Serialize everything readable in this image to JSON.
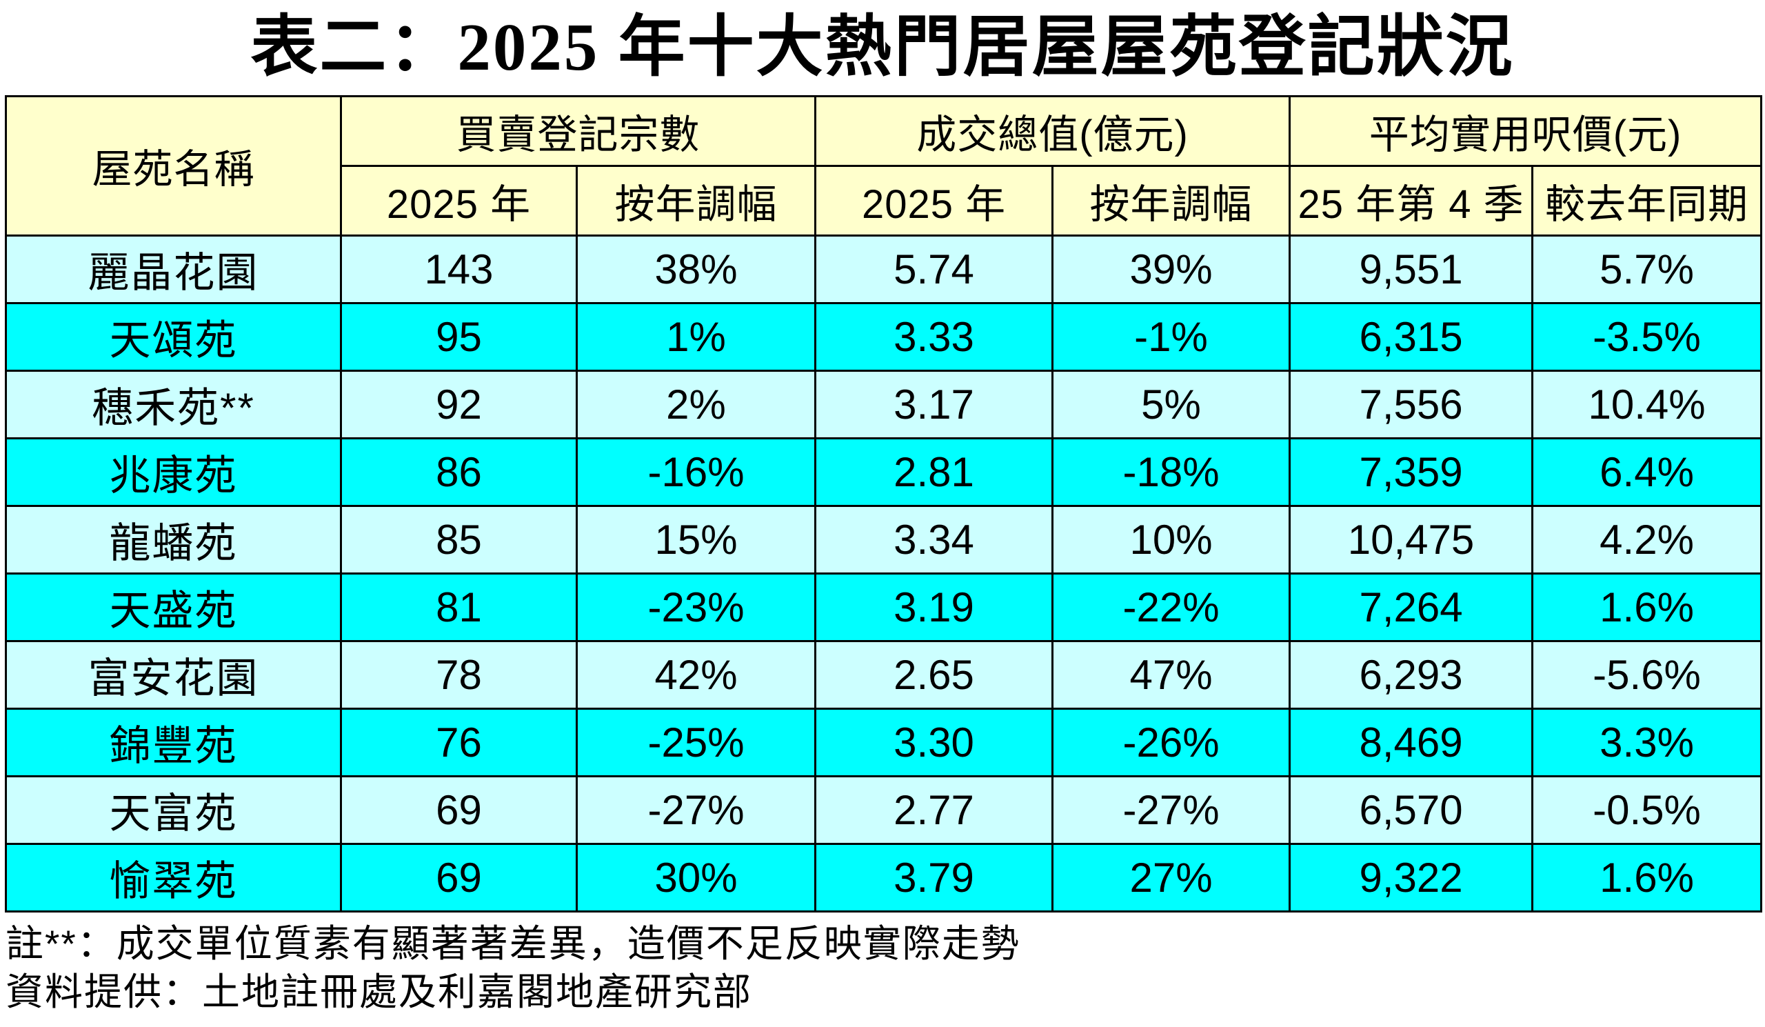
{
  "page_title": "表二：2025 年十大熱門居屋屋苑登記狀況",
  "colors": {
    "header_bg": "#FFFFCC",
    "row_light": "#CCFFFF",
    "row_bright": "#00FFFF",
    "border": "#000000",
    "text": "#000000"
  },
  "header": {
    "estate": "屋苑名稱",
    "groups": [
      {
        "label": "買賣登記宗數",
        "sub": [
          "2025 年",
          "按年調幅"
        ]
      },
      {
        "label": "成交總值(億元)",
        "sub": [
          "2025 年",
          "按年調幅"
        ]
      },
      {
        "label": "平均實用呎價(元)",
        "sub": [
          "25 年第 4 季",
          "較去年同期"
        ]
      }
    ]
  },
  "notes": [
    "註**：成交單位質素有顯著著差異，造價不足反映實際走勢",
    "資料提供：土地註冊處及利嘉閣地產研究部"
  ],
  "chart_data": {
    "type": "table",
    "title": "表二：2025 年十大熱門居屋屋苑登記狀況",
    "columns": [
      "屋苑名稱",
      "買賣登記宗數 2025 年",
      "買賣登記宗數 按年調幅",
      "成交總值(億元) 2025 年",
      "成交總值(億元) 按年調幅",
      "平均實用呎價(元) 25 年第 4 季",
      "平均實用呎價(元) 較去年同期"
    ],
    "rows": [
      [
        "麗晶花園",
        "143",
        "38%",
        "5.74",
        "39%",
        "9,551",
        "5.7%"
      ],
      [
        "天頌苑",
        "95",
        "1%",
        "3.33",
        "-1%",
        "6,315",
        "-3.5%"
      ],
      [
        "穗禾苑**",
        "92",
        "2%",
        "3.17",
        "5%",
        "7,556",
        "10.4%"
      ],
      [
        "兆康苑",
        "86",
        "-16%",
        "2.81",
        "-18%",
        "7,359",
        "6.4%"
      ],
      [
        "龍蟠苑",
        "85",
        "15%",
        "3.34",
        "10%",
        "10,475",
        "4.2%"
      ],
      [
        "天盛苑",
        "81",
        "-23%",
        "3.19",
        "-22%",
        "7,264",
        "1.6%"
      ],
      [
        "富安花園",
        "78",
        "42%",
        "2.65",
        "47%",
        "6,293",
        "-5.6%"
      ],
      [
        "錦豐苑",
        "76",
        "-25%",
        "3.30",
        "-26%",
        "8,469",
        "3.3%"
      ],
      [
        "天富苑",
        "69",
        "-27%",
        "2.77",
        "-27%",
        "6,570",
        "-0.5%"
      ],
      [
        "愉翠苑",
        "69",
        "30%",
        "3.79",
        "27%",
        "9,322",
        "1.6%"
      ]
    ]
  }
}
